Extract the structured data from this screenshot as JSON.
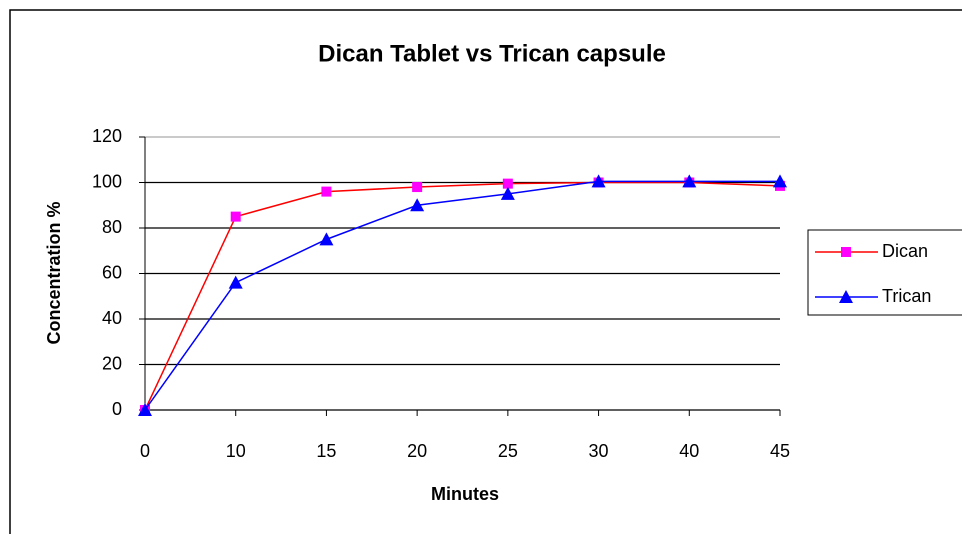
{
  "chart_data": {
    "type": "line",
    "title": "Dican Tablet vs Trican capsule",
    "xlabel": "Minutes",
    "ylabel": "Concentration %",
    "categories": [
      "0",
      "10",
      "15",
      "20",
      "25",
      "30",
      "40",
      "45"
    ],
    "series": [
      {
        "name": "Dican",
        "color": "#ff0000",
        "marker_color": "#ff00ff",
        "marker": "square",
        "values": [
          0,
          85,
          96,
          98,
          99.5,
          100,
          100,
          98.5
        ]
      },
      {
        "name": "Trican",
        "color": "#0000ff",
        "marker_color": "#0000ff",
        "marker": "triangle",
        "values": [
          0,
          56,
          75,
          90,
          95,
          100.5,
          100.5,
          100.5
        ]
      }
    ],
    "ylim": [
      0,
      120
    ],
    "yticks": [
      0,
      20,
      40,
      60,
      80,
      100,
      120
    ],
    "grid": true,
    "legend": "right"
  }
}
